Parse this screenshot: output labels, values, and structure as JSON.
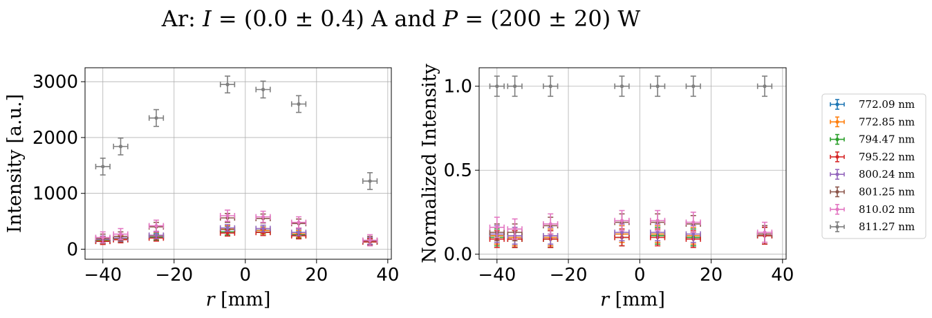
{
  "title": {
    "prefix": "Ar: ",
    "i_var": "I",
    "i_expr": " = (0.0 ± 0.4) A and ",
    "p_var": "P",
    "p_expr": " = (200 ± 20) W"
  },
  "colors": {
    "772.09 nm": "#1f77b4",
    "772.85 nm": "#ff7f0e",
    "794.47 nm": "#2ca02c",
    "795.22 nm": "#d62728",
    "800.24 nm": "#9467bd",
    "801.25 nm": "#8c564b",
    "810.02 nm": "#e377c2",
    "811.27 nm": "#7f7f7f"
  },
  "legend": {
    "entries": [
      "772.09 nm",
      "772.85 nm",
      "794.47 nm",
      "795.22 nm",
      "800.24 nm",
      "801.25 nm",
      "810.02 nm",
      "811.27 nm"
    ],
    "placement": "right, outside plots"
  },
  "chart_data": [
    {
      "type": "scatter",
      "xlabel": "r [mm]",
      "ylabel": "Intensity [a.u.]",
      "xlim": [
        -45,
        41
      ],
      "ylim": [
        -180,
        3250
      ],
      "xticks": [
        -40,
        -20,
        0,
        20,
        40
      ],
      "yticks": [
        0,
        1000,
        2000,
        3000
      ],
      "grid": true,
      "x": [
        -40,
        -35,
        -25,
        -5,
        5,
        15,
        35
      ],
      "x_err": 2,
      "series": [
        {
          "name": "772.09 nm",
          "values": [
            160,
            190,
            230,
            350,
            340,
            270,
            140
          ],
          "err": 60
        },
        {
          "name": "772.85 nm",
          "values": [
            165,
            185,
            240,
            360,
            335,
            275,
            145
          ],
          "err": 60
        },
        {
          "name": "794.47 nm",
          "values": [
            150,
            175,
            210,
            310,
            305,
            250,
            130
          ],
          "err": 55
        },
        {
          "name": "795.22 nm",
          "values": [
            140,
            170,
            200,
            290,
            300,
            240,
            130
          ],
          "err": 55
        },
        {
          "name": "800.24 nm",
          "values": [
            175,
            200,
            250,
            380,
            370,
            300,
            150
          ],
          "err": 60
        },
        {
          "name": "801.25 nm",
          "values": [
            190,
            230,
            400,
            560,
            550,
            460,
            150
          ],
          "err": 80
        },
        {
          "name": "810.02 nm",
          "values": [
            210,
            270,
            420,
            600,
            580,
            480,
            160
          ],
          "err": 100
        },
        {
          "name": "811.27 nm",
          "values": [
            1480,
            1840,
            2350,
            2950,
            2860,
            2600,
            1220
          ],
          "err": 150
        }
      ]
    },
    {
      "type": "scatter",
      "xlabel": "r [mm]",
      "ylabel": "Normalized Intensity",
      "xlim": [
        -45,
        41
      ],
      "ylim": [
        -0.03,
        1.11
      ],
      "xticks": [
        -40,
        -20,
        0,
        20,
        40
      ],
      "yticks": [
        0.0,
        0.5,
        1.0
      ],
      "ytick_labels": [
        "0.0",
        "0.5",
        "1.0"
      ],
      "grid": true,
      "x": [
        -40,
        -35,
        -25,
        -5,
        5,
        15,
        35
      ],
      "x_err": 2,
      "series": [
        {
          "name": "772.09 nm",
          "values": [
            0.11,
            0.1,
            0.1,
            0.12,
            0.12,
            0.1,
            0.11
          ],
          "err": 0.05
        },
        {
          "name": "772.85 nm",
          "values": [
            0.11,
            0.1,
            0.1,
            0.12,
            0.12,
            0.11,
            0.12
          ],
          "err": 0.05
        },
        {
          "name": "794.47 nm",
          "values": [
            0.1,
            0.09,
            0.09,
            0.1,
            0.11,
            0.1,
            0.11
          ],
          "err": 0.05
        },
        {
          "name": "795.22 nm",
          "values": [
            0.09,
            0.09,
            0.09,
            0.1,
            0.1,
            0.09,
            0.11
          ],
          "err": 0.05
        },
        {
          "name": "800.24 nm",
          "values": [
            0.12,
            0.11,
            0.11,
            0.13,
            0.13,
            0.12,
            0.12
          ],
          "err": 0.05
        },
        {
          "name": "801.25 nm",
          "values": [
            0.13,
            0.13,
            0.17,
            0.19,
            0.19,
            0.18,
            0.12
          ],
          "err": 0.05
        },
        {
          "name": "810.02 nm",
          "values": [
            0.16,
            0.15,
            0.18,
            0.2,
            0.2,
            0.19,
            0.13
          ],
          "err": 0.06
        },
        {
          "name": "811.27 nm",
          "values": [
            1.0,
            1.0,
            1.0,
            1.0,
            1.0,
            1.0,
            1.0
          ],
          "err": 0.06
        }
      ]
    }
  ]
}
